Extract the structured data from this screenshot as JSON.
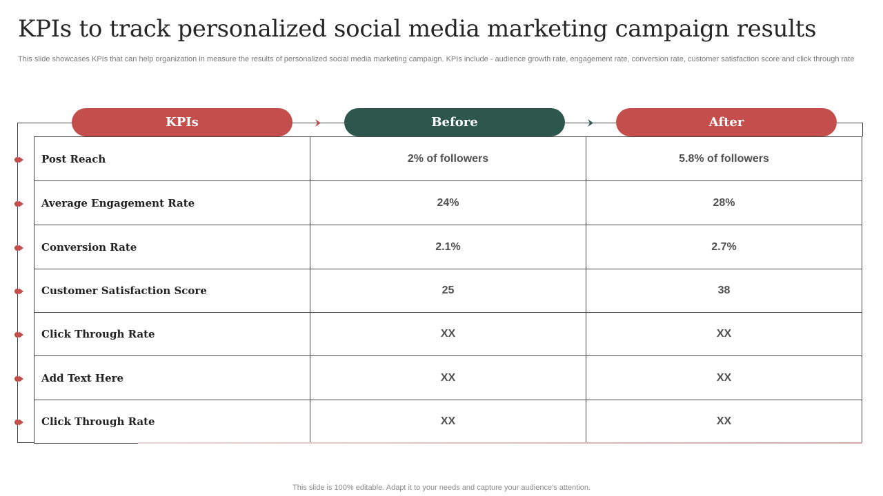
{
  "slide": {
    "title": "KPIs to track personalized social media marketing campaign results",
    "subtitle": "This slide showcases KPIs that can help organization in measure the results of personalized social media marketing campaign. KPIs include - audience growth rate, engagement rate, conversion rate, customer satisfaction score and click through rate",
    "footer": "This slide is 100% editable. Adapt it to your needs and capture your audience's attention."
  },
  "colors": {
    "red": "#c44e4c",
    "green": "#2d574d"
  },
  "headers": {
    "kpis": "KPIs",
    "before": "Before",
    "after": "After"
  },
  "rows": [
    {
      "kpi": "Post Reach",
      "before": "2% of followers",
      "after": "5.8% of followers"
    },
    {
      "kpi": "Average Engagement Rate",
      "before": "24%",
      "after": "28%"
    },
    {
      "kpi": "Conversion Rate",
      "before": "2.1%",
      "after": "2.7%"
    },
    {
      "kpi": "Customer Satisfaction Score",
      "before": "25",
      "after": "38"
    },
    {
      "kpi": "Click Through Rate",
      "before": "XX",
      "after": "XX"
    },
    {
      "kpi": "Add Text Here",
      "before": "XX",
      "after": "XX"
    },
    {
      "kpi": "Click Through Rate",
      "before": "XX",
      "after": "XX"
    }
  ]
}
